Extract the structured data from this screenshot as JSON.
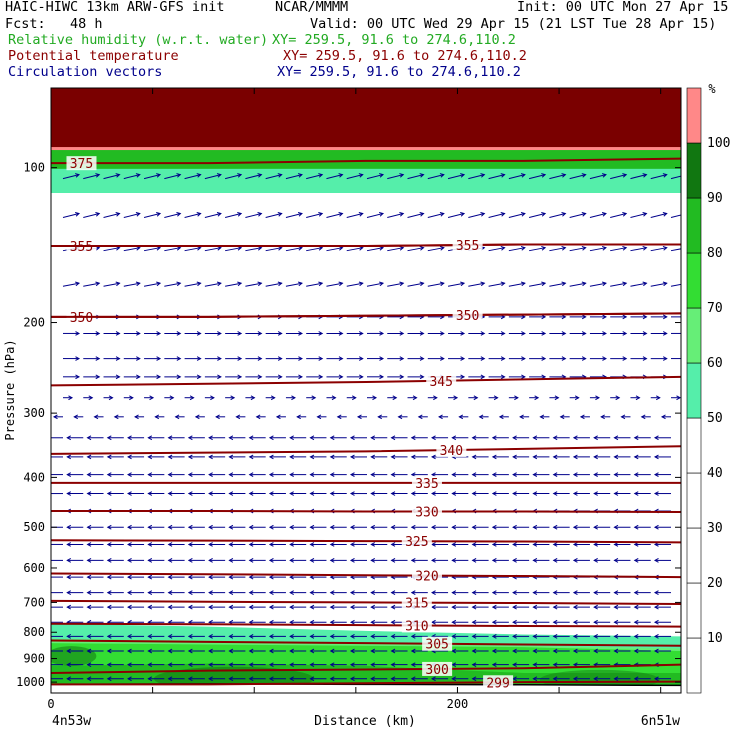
{
  "header": {
    "model": "HAIC-HIWC 13km ARW-GFS init",
    "org": "NCAR/MMMM",
    "init": "Init: 00 UTC Mon 27 Apr 15",
    "fcst": "Fcst:   48 h",
    "valid": "Valid: 00 UTC Wed 29 Apr 15 (21 LST Tue 28 Apr 15)",
    "rh_label": "Relative humidity (w.r.t. water)",
    "rh_xy": "XY= 259.5, 91.6 to 274.6,110.2",
    "pt_label": "Potential temperature",
    "pt_xy": "XY= 259.5, 91.6 to 274.6,110.2",
    "cv_label": "Circulation vectors",
    "cv_xy": "XY= 259.5, 91.6 to 274.6,110.2"
  },
  "chart_data": {
    "type": "heatmap",
    "ylabel": "Pressure (hPa)",
    "xlabel": "Distance (km)",
    "y_scale": "log",
    "ylim": [
      1050,
      70
    ],
    "xlim": [
      0,
      310
    ],
    "y_ticks": [
      100,
      200,
      300,
      400,
      500,
      600,
      700,
      800,
      900,
      1000
    ],
    "x_ticks": [
      0,
      200
    ],
    "x_end_labels": {
      "left": "4n53w",
      "right": "6n51w"
    },
    "colorbar": {
      "unit": "%",
      "levels": [
        10,
        20,
        30,
        40,
        50,
        60,
        70,
        80,
        90,
        100
      ],
      "colors": [
        "#ffffff",
        "#ffffff",
        "#ffffff",
        "#ffffff",
        "#ffffff",
        "#55eeaa",
        "#66ee77",
        "#33dd33",
        "#22bb22",
        "#117711",
        "#ff8888"
      ]
    },
    "rh_layers": [
      {
        "name": "rh-50-60",
        "color": "#55eeaa",
        "top_p": [
          770,
          780,
          795,
          808,
          815
        ]
      },
      {
        "name": "rh-60-70",
        "color": "#66ee77",
        "top_p": [
          825,
          830,
          840,
          850,
          860
        ]
      },
      {
        "name": "rh-70-80",
        "color": "#33dd33",
        "top_p": [
          840,
          845,
          850,
          855,
          870
        ]
      },
      {
        "name": "rh-80-90",
        "color": "#22bb22",
        "top_p": [
          930,
          920,
          930,
          960,
          960
        ]
      }
    ],
    "upper_rh": {
      "top_p": 92,
      "bottom_p": 112
    },
    "stratosphere_p": 92,
    "isentropes": [
      {
        "theta": "375",
        "p": [
          98,
          98,
          97,
          97,
          96
        ],
        "label_x": 15
      },
      {
        "theta": "355",
        "p": [
          142,
          142,
          142,
          141,
          141
        ],
        "label_x": 15
      },
      {
        "theta": "355",
        "p": [
          142,
          142,
          142,
          141,
          141
        ],
        "label_x": 205
      },
      {
        "theta": "350",
        "p": [
          195,
          195,
          194,
          193,
          192
        ],
        "label_x": 15
      },
      {
        "theta": "350",
        "p": [
          195,
          195,
          194,
          193,
          192
        ],
        "label_x": 205
      },
      {
        "theta": "345",
        "p": [
          265,
          263,
          261,
          258,
          255
        ],
        "label_x": 192
      },
      {
        "theta": "340",
        "p": [
          360,
          358,
          356,
          352,
          348
        ],
        "label_x": 197
      },
      {
        "theta": "335",
        "p": [
          410,
          410,
          410,
          410,
          410
        ],
        "label_x": 185
      },
      {
        "theta": "330",
        "p": [
          465,
          465,
          466,
          466,
          467
        ],
        "label_x": 185
      },
      {
        "theta": "325",
        "p": [
          530,
          531,
          532,
          533,
          535
        ],
        "label_x": 180
      },
      {
        "theta": "320",
        "p": [
          615,
          617,
          620,
          622,
          625
        ],
        "label_x": 185
      },
      {
        "theta": "315",
        "p": [
          695,
          698,
          700,
          702,
          705
        ],
        "label_x": 180
      },
      {
        "theta": "310",
        "p": [
          770,
          772,
          775,
          778,
          780
        ],
        "label_x": 180
      },
      {
        "theta": "305",
        "p": [
          830,
          835,
          840,
          845,
          850
        ],
        "label_x": 190
      },
      {
        "theta": "300",
        "p": [
          960,
          950,
          945,
          940,
          925
        ],
        "label_x": 190
      },
      {
        "theta": "299",
        "p": [
          1010,
          1010,
          1005,
          1000,
          998
        ],
        "label_x": 220
      }
    ],
    "vectors": {
      "color": "#00008b",
      "levels": [
        {
          "p": 105,
          "u": 1,
          "w": -0.4
        },
        {
          "p": 125,
          "u": 1,
          "w": -0.4
        },
        {
          "p": 145,
          "u": 1,
          "w": -0.3
        },
        {
          "p": 170,
          "u": 1,
          "w": -0.3
        },
        {
          "p": 195,
          "u": 1,
          "w": 0
        },
        {
          "p": 210,
          "u": 1,
          "w": 0
        },
        {
          "p": 235,
          "u": 1,
          "w": 0
        },
        {
          "p": 255,
          "u": 1,
          "w": 0
        },
        {
          "p": 280,
          "u": 0.5,
          "w": 0
        },
        {
          "p": 305,
          "u": -0.5,
          "w": 0
        },
        {
          "p": 335,
          "u": -1,
          "w": 0
        },
        {
          "p": 365,
          "u": -1,
          "w": 0
        },
        {
          "p": 395,
          "u": -1,
          "w": 0
        },
        {
          "p": 430,
          "u": -1,
          "w": 0
        },
        {
          "p": 465,
          "u": -1,
          "w": 0
        },
        {
          "p": 500,
          "u": -1,
          "w": 0
        },
        {
          "p": 540,
          "u": -1,
          "w": 0
        },
        {
          "p": 580,
          "u": -1,
          "w": 0
        },
        {
          "p": 625,
          "u": -1,
          "w": 0
        },
        {
          "p": 670,
          "u": -1,
          "w": 0
        },
        {
          "p": 715,
          "u": -1,
          "w": 0
        },
        {
          "p": 765,
          "u": -1,
          "w": 0
        },
        {
          "p": 815,
          "u": -1,
          "w": 0
        },
        {
          "p": 870,
          "u": -1,
          "w": 0
        },
        {
          "p": 925,
          "u": -1,
          "w": 0
        },
        {
          "p": 985,
          "u": -1,
          "w": 0
        }
      ],
      "columns": 31
    },
    "terrain_p": [
      1010,
      1008,
      1010,
      1012,
      1015
    ]
  }
}
